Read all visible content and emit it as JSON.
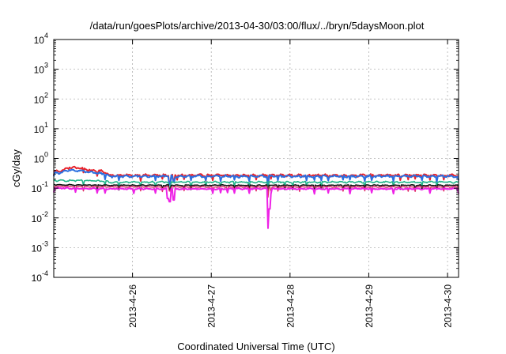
{
  "chart_data": {
    "type": "line",
    "title": "/data/run/goesPlots/archive/2013-04-30/03:00/flux/../bryn/5daysMoon.plot",
    "xlabel": "Coordinated Universal Time (UTC)",
    "ylabel": "cGy/day",
    "yscale": "log",
    "ylim": [
      0.0001,
      10000
    ],
    "xlim": [
      0,
      5.14
    ],
    "grid": true,
    "y_ticks": [
      {
        "value": 0.0001,
        "base": "10",
        "exp": "-4"
      },
      {
        "value": 0.001,
        "base": "10",
        "exp": "-3"
      },
      {
        "value": 0.01,
        "base": "10",
        "exp": "-2"
      },
      {
        "value": 0.1,
        "base": "10",
        "exp": "-1"
      },
      {
        "value": 1,
        "base": "10",
        "exp": "0"
      },
      {
        "value": 10,
        "base": "10",
        "exp": "1"
      },
      {
        "value": 100,
        "base": "10",
        "exp": "2"
      },
      {
        "value": 1000,
        "base": "10",
        "exp": "3"
      },
      {
        "value": 10000,
        "base": "10",
        "exp": "4"
      }
    ],
    "x_ticks": [
      {
        "value": 1,
        "label": "2013-4-26"
      },
      {
        "value": 2,
        "label": "2013-4-27"
      },
      {
        "value": 3,
        "label": "2013-4-28"
      },
      {
        "value": 4,
        "label": "2013-4-29"
      },
      {
        "value": 5,
        "label": "2013-4-30"
      }
    ],
    "series": [
      {
        "color": "#e8232b",
        "base": 0.27,
        "noise": 0.1,
        "width": 2.0,
        "start": [
          [
            0,
            0.36
          ],
          [
            0.12,
            0.4
          ],
          [
            0.2,
            0.5
          ],
          [
            0.35,
            0.47
          ],
          [
            0.5,
            0.38
          ],
          [
            0.62,
            0.37
          ],
          [
            0.7,
            0.3
          ]
        ],
        "dips": [
          [
            1.47,
            0.14
          ],
          [
            1.52,
            0.18
          ],
          [
            2.72,
            0.09
          ]
        ]
      },
      {
        "color": "#2b6fe0",
        "base": 0.25,
        "noise": 0.1,
        "width": 2.0,
        "start": [
          [
            0,
            0.32
          ],
          [
            0.12,
            0.35
          ],
          [
            0.2,
            0.4
          ],
          [
            0.35,
            0.38
          ],
          [
            0.5,
            0.33
          ],
          [
            0.62,
            0.31
          ],
          [
            0.7,
            0.27
          ]
        ],
        "dips": [
          [
            1.47,
            0.13
          ],
          [
            1.52,
            0.17
          ],
          [
            2.72,
            0.085
          ]
        ]
      },
      {
        "color": "#22b58a",
        "base": 0.16,
        "noise": 0.07,
        "width": 1.6,
        "start": [
          [
            0,
            0.18
          ],
          [
            0.3,
            0.18
          ],
          [
            0.7,
            0.17
          ]
        ],
        "dips": [
          [
            1.47,
            0.1
          ],
          [
            2.72,
            0.07
          ]
        ]
      },
      {
        "color": "#111111",
        "base": 0.125,
        "noise": 0.04,
        "width": 1.6,
        "start": [
          [
            0,
            0.13
          ],
          [
            0.7,
            0.125
          ]
        ],
        "dips": [
          [
            1.47,
            0.09
          ],
          [
            2.72,
            0.06
          ]
        ]
      },
      {
        "color": "#e0306a",
        "base": 0.11,
        "noise": 0.04,
        "width": 1.4,
        "start": [
          [
            0,
            0.115
          ],
          [
            0.7,
            0.11
          ]
        ],
        "dips": [
          [
            1.47,
            0.08
          ],
          [
            2.72,
            0.05
          ]
        ]
      },
      {
        "color": "#ee22e6",
        "base": 0.095,
        "noise": 0.06,
        "width": 2.0,
        "start": [
          [
            0,
            0.1
          ],
          [
            0.7,
            0.095
          ]
        ],
        "dips": [
          [
            1.45,
            0.045
          ],
          [
            1.47,
            0.035
          ],
          [
            1.52,
            0.04
          ],
          [
            2.72,
            0.0045
          ],
          [
            2.735,
            0.02
          ]
        ]
      }
    ]
  }
}
